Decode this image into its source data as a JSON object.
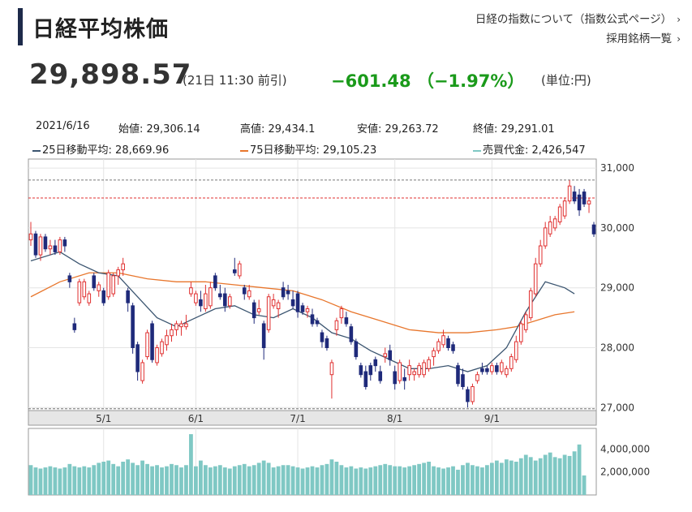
{
  "header": {
    "title": "日経平均株価",
    "link_about": "日経の指数について（指数公式ページ）",
    "link_constituents": "採用銘柄一覧",
    "chevron": "›"
  },
  "quote": {
    "price": "29,898.57",
    "time": "(21日 11:30 前引)",
    "change": "−601.48 （−1.97%）",
    "unit": "(単位:円)"
  },
  "info_row": {
    "date": "2021/6/16",
    "open": "始値: 29,306.14",
    "high": "高値: 29,434.1",
    "low": "安値: 29,263.72",
    "close": "終値: 29,291.01"
  },
  "legend": {
    "ma25": "25日移動平均: 28,669.96",
    "ma75": "75日移動平均: 29,105.23",
    "volume": "売買代金: 2,426,547"
  },
  "colors": {
    "up": "#e03030",
    "down": "#1f2a7a",
    "ma25": "#3b5570",
    "ma75": "#e8762c",
    "volume": "#7fc8c4",
    "change": "#1a9a1a",
    "title_bar": "#1d2a4a"
  },
  "chart_data": {
    "type": "candlestick",
    "price_axis": {
      "ylim": [
        26950,
        31150
      ],
      "ticks": [
        27000,
        28000,
        29000,
        30000,
        31000
      ],
      "tick_labels": [
        "27,000",
        "28,000",
        "29,000",
        "30,000",
        "31,000"
      ]
    },
    "volume_axis": {
      "ticks": [
        2000000,
        4000000
      ],
      "tick_labels": [
        "2,000,000",
        "4,000,000"
      ]
    },
    "x_labels": [
      {
        "label": "5/1",
        "index": 15
      },
      {
        "label": "6/1",
        "index": 34
      },
      {
        "label": "7/1",
        "index": 55
      },
      {
        "label": "8/1",
        "index": 75
      },
      {
        "label": "9/1",
        "index": 95
      }
    ],
    "reference_lines": [
      {
        "value": 30800,
        "style": "dash-gray"
      },
      {
        "value": 30500,
        "style": "dash-red"
      },
      {
        "value": 26980,
        "style": "dash-gray"
      }
    ],
    "candles": [
      [
        29800,
        30100,
        29700,
        29900
      ],
      [
        29900,
        29950,
        29500,
        29550
      ],
      [
        29550,
        29900,
        29450,
        29850
      ],
      [
        29850,
        29900,
        29600,
        29650
      ],
      [
        29650,
        29800,
        29550,
        29700
      ],
      [
        29700,
        29800,
        29550,
        29600
      ],
      [
        29600,
        29850,
        29550,
        29800
      ],
      [
        29800,
        29850,
        29600,
        29700
      ],
      [
        29200,
        29250,
        29000,
        29100
      ],
      [
        28400,
        28500,
        28250,
        28300
      ],
      [
        28750,
        29150,
        28700,
        29100
      ],
      [
        28850,
        29150,
        28800,
        29100
      ],
      [
        28750,
        28950,
        28700,
        28900
      ],
      [
        29200,
        29250,
        28950,
        29000
      ],
      [
        28950,
        29100,
        28850,
        29050
      ],
      [
        28950,
        29000,
        28700,
        28750
      ],
      [
        28850,
        29300,
        28800,
        29250
      ],
      [
        28900,
        29250,
        28850,
        29200
      ],
      [
        29200,
        29350,
        29050,
        29300
      ],
      [
        29300,
        29500,
        29200,
        29400
      ],
      [
        28950,
        29000,
        28600,
        28750
      ],
      [
        28700,
        28750,
        27900,
        28000
      ],
      [
        28050,
        28100,
        27450,
        27600
      ],
      [
        27450,
        27800,
        27400,
        27750
      ],
      [
        27850,
        28300,
        27800,
        28250
      ],
      [
        28400,
        28450,
        27750,
        27800
      ],
      [
        27750,
        28050,
        27700,
        28000
      ],
      [
        27900,
        28150,
        27850,
        28100
      ],
      [
        28050,
        28300,
        27950,
        28200
      ],
      [
        28200,
        28400,
        28100,
        28300
      ],
      [
        28300,
        28450,
        28200,
        28400
      ],
      [
        28350,
        28450,
        28200,
        28400
      ],
      [
        28350,
        28550,
        28300,
        28400
      ],
      [
        28900,
        29100,
        28850,
        29000
      ],
      [
        28750,
        28950,
        28700,
        28900
      ],
      [
        28800,
        28950,
        28600,
        28700
      ],
      [
        28650,
        29050,
        28600,
        28900
      ],
      [
        28700,
        29100,
        28650,
        29000
      ],
      [
        29200,
        29250,
        28950,
        29000
      ],
      [
        28900,
        29050,
        28800,
        28850
      ],
      [
        28900,
        29000,
        28600,
        28700
      ],
      [
        28700,
        28900,
        28650,
        28850
      ],
      [
        29300,
        29500,
        29200,
        29250
      ],
      [
        29200,
        29450,
        29150,
        29400
      ],
      [
        29000,
        29050,
        28800,
        28900
      ],
      [
        28850,
        29050,
        28800,
        28950
      ],
      [
        28750,
        28800,
        28400,
        28500
      ],
      [
        28600,
        28800,
        28550,
        28650
      ],
      [
        28400,
        28450,
        27800,
        28000
      ],
      [
        28300,
        28900,
        28250,
        28850
      ],
      [
        28700,
        28900,
        28650,
        28800
      ],
      [
        28650,
        28800,
        28500,
        28750
      ],
      [
        29000,
        29100,
        28800,
        28850
      ],
      [
        28950,
        29050,
        28800,
        28900
      ],
      [
        28800,
        28950,
        28650,
        28700
      ],
      [
        28900,
        28950,
        28500,
        28600
      ],
      [
        28700,
        28750,
        28550,
        28600
      ],
      [
        28600,
        28700,
        28500,
        28650
      ],
      [
        28550,
        28650,
        28350,
        28400
      ],
      [
        28450,
        28500,
        28350,
        28400
      ],
      [
        28250,
        28300,
        28000,
        28100
      ],
      [
        28150,
        28200,
        27950,
        28000
      ],
      [
        27550,
        27800,
        27150,
        27750
      ],
      [
        28300,
        28500,
        28200,
        28450
      ],
      [
        28500,
        28700,
        28400,
        28650
      ],
      [
        28500,
        28600,
        28350,
        28400
      ],
      [
        28350,
        28400,
        28050,
        28100
      ],
      [
        28100,
        28150,
        27800,
        27850
      ],
      [
        27700,
        27750,
        27500,
        27550
      ],
      [
        27600,
        27700,
        27300,
        27350
      ],
      [
        27700,
        27750,
        27450,
        27550
      ],
      [
        27800,
        27850,
        27600,
        27700
      ],
      [
        27600,
        27700,
        27400,
        27450
      ],
      [
        27850,
        28000,
        27750,
        27900
      ],
      [
        27950,
        28050,
        27700,
        27800
      ],
      [
        27600,
        27700,
        27300,
        27400
      ],
      [
        27450,
        27800,
        27400,
        27750
      ],
      [
        27500,
        27650,
        27300,
        27450
      ],
      [
        27550,
        27800,
        27450,
        27700
      ],
      [
        27550,
        27650,
        27450,
        27600
      ],
      [
        27550,
        27750,
        27500,
        27700
      ],
      [
        27550,
        27800,
        27500,
        27750
      ],
      [
        27650,
        27850,
        27600,
        27800
      ],
      [
        27850,
        28000,
        27700,
        27950
      ],
      [
        27950,
        28150,
        27900,
        28100
      ],
      [
        28050,
        28300,
        28000,
        28200
      ],
      [
        28150,
        28200,
        27950,
        28000
      ],
      [
        28050,
        28100,
        27900,
        27950
      ],
      [
        27700,
        27750,
        27350,
        27400
      ],
      [
        27550,
        27650,
        27300,
        27350
      ],
      [
        27300,
        27350,
        27000,
        27100
      ],
      [
        27100,
        27400,
        27050,
        27350
      ],
      [
        27450,
        27600,
        27400,
        27550
      ],
      [
        27650,
        27750,
        27550,
        27600
      ],
      [
        27650,
        27700,
        27550,
        27600
      ],
      [
        27600,
        27750,
        27550,
        27700
      ],
      [
        27700,
        27750,
        27550,
        27600
      ],
      [
        27600,
        27800,
        27550,
        27750
      ],
      [
        27550,
        27700,
        27500,
        27650
      ],
      [
        27650,
        27900,
        27600,
        27850
      ],
      [
        27800,
        28200,
        27750,
        28100
      ],
      [
        28100,
        28450,
        28050,
        28400
      ],
      [
        28300,
        28600,
        28250,
        28550
      ],
      [
        28500,
        29000,
        28450,
        28950
      ],
      [
        28900,
        29500,
        28850,
        29400
      ],
      [
        29400,
        29800,
        29350,
        29700
      ],
      [
        29700,
        30100,
        29650,
        30000
      ],
      [
        29900,
        30200,
        29850,
        30100
      ],
      [
        30000,
        30200,
        29950,
        30150
      ],
      [
        30100,
        30400,
        30050,
        30350
      ],
      [
        30200,
        30500,
        30150,
        30450
      ],
      [
        30450,
        30800,
        30400,
        30700
      ],
      [
        30600,
        30700,
        30400,
        30450
      ],
      [
        30550,
        30650,
        30200,
        30300
      ],
      [
        30600,
        30650,
        30350,
        30400
      ],
      [
        30400,
        30500,
        30250,
        30450
      ],
      [
        30050,
        30100,
        29850,
        29900
      ]
    ],
    "ma25": [
      [
        0,
        29450
      ],
      [
        6,
        29600
      ],
      [
        10,
        29400
      ],
      [
        14,
        29250
      ],
      [
        18,
        29200
      ],
      [
        22,
        28850
      ],
      [
        26,
        28500
      ],
      [
        30,
        28350
      ],
      [
        34,
        28500
      ],
      [
        38,
        28650
      ],
      [
        42,
        28700
      ],
      [
        46,
        28550
      ],
      [
        50,
        28500
      ],
      [
        54,
        28650
      ],
      [
        58,
        28500
      ],
      [
        62,
        28250
      ],
      [
        66,
        28150
      ],
      [
        70,
        27950
      ],
      [
        74,
        27800
      ],
      [
        78,
        27650
      ],
      [
        82,
        27650
      ],
      [
        86,
        27700
      ],
      [
        90,
        27600
      ],
      [
        94,
        27700
      ],
      [
        98,
        28000
      ],
      [
        102,
        28600
      ],
      [
        106,
        29100
      ],
      [
        110,
        29000
      ],
      [
        112,
        28900
      ]
    ],
    "ma75": [
      [
        0,
        28850
      ],
      [
        6,
        29100
      ],
      [
        12,
        29250
      ],
      [
        18,
        29250
      ],
      [
        24,
        29150
      ],
      [
        30,
        29100
      ],
      [
        36,
        29100
      ],
      [
        42,
        29050
      ],
      [
        48,
        29000
      ],
      [
        54,
        28950
      ],
      [
        60,
        28800
      ],
      [
        66,
        28600
      ],
      [
        72,
        28450
      ],
      [
        78,
        28300
      ],
      [
        84,
        28250
      ],
      [
        90,
        28250
      ],
      [
        96,
        28300
      ],
      [
        100,
        28350
      ],
      [
        104,
        28450
      ],
      [
        108,
        28550
      ],
      [
        112,
        28600
      ]
    ],
    "volume": [
      2.6,
      2.4,
      2.3,
      2.4,
      2.5,
      2.4,
      2.3,
      2.4,
      2.7,
      2.5,
      2.4,
      2.5,
      2.4,
      2.6,
      2.8,
      2.9,
      3.0,
      2.7,
      2.5,
      2.9,
      3.1,
      2.8,
      2.6,
      3.0,
      2.7,
      2.5,
      2.6,
      2.4,
      2.5,
      2.7,
      2.6,
      2.4,
      2.6,
      5.3,
      2.5,
      3.0,
      2.6,
      2.4,
      2.5,
      2.6,
      2.4,
      2.3,
      2.5,
      2.6,
      2.7,
      2.5,
      2.6,
      2.8,
      3.0,
      2.8,
      2.4,
      2.5,
      2.6,
      2.6,
      2.5,
      2.4,
      2.3,
      2.4,
      2.5,
      2.4,
      2.6,
      2.7,
      3.1,
      2.9,
      2.6,
      2.4,
      2.5,
      2.3,
      2.4,
      2.3,
      2.4,
      2.5,
      2.6,
      2.7,
      2.6,
      2.5,
      2.5,
      2.4,
      2.5,
      2.6,
      2.7,
      2.8,
      2.9,
      2.5,
      2.4,
      2.3,
      2.4,
      2.5,
      2.2,
      2.6,
      2.8,
      2.6,
      2.5,
      2.4,
      2.6,
      2.8,
      3.0,
      2.8,
      3.1,
      3.0,
      2.9,
      3.2,
      3.5,
      3.3,
      3.0,
      3.2,
      3.5,
      3.7,
      3.3,
      3.2,
      3.5,
      3.4,
      3.8,
      4.4,
      1.7
    ]
  }
}
